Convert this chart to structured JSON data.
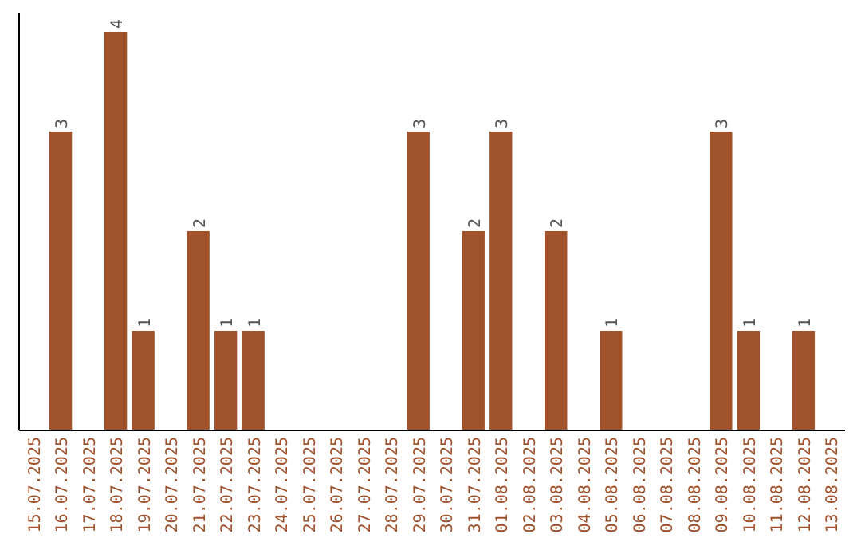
{
  "chart_data": {
    "type": "bar",
    "categories": [
      "15.07.2025",
      "16.07.2025",
      "17.07.2025",
      "18.07.2025",
      "19.07.2025",
      "20.07.2025",
      "21.07.2025",
      "22.07.2025",
      "23.07.2025",
      "24.07.2025",
      "25.07.2025",
      "26.07.2025",
      "27.07.2025",
      "28.07.2025",
      "29.07.2025",
      "30.07.2025",
      "31.07.2025",
      "01.08.2025",
      "02.08.2025",
      "03.08.2025",
      "04.08.2025",
      "05.08.2025",
      "06.08.2025",
      "07.08.2025",
      "08.08.2025",
      "09.08.2025",
      "10.08.2025",
      "11.08.2025",
      "12.08.2025",
      "13.08.2025"
    ],
    "values": [
      0,
      3,
      0,
      4,
      1,
      0,
      2,
      1,
      1,
      0,
      0,
      0,
      0,
      0,
      3,
      0,
      2,
      3,
      0,
      2,
      0,
      1,
      0,
      0,
      0,
      3,
      1,
      0,
      1,
      0
    ],
    "value_labels": [
      null,
      "3",
      null,
      "4",
      "1",
      null,
      "2",
      "1",
      "1",
      null,
      null,
      null,
      null,
      null,
      "3",
      null,
      "2",
      "3",
      null,
      "2",
      null,
      "1",
      null,
      null,
      null,
      "3",
      "1",
      null,
      "1",
      null
    ],
    "color": "#a0522d",
    "tick_labels": "x"
  }
}
